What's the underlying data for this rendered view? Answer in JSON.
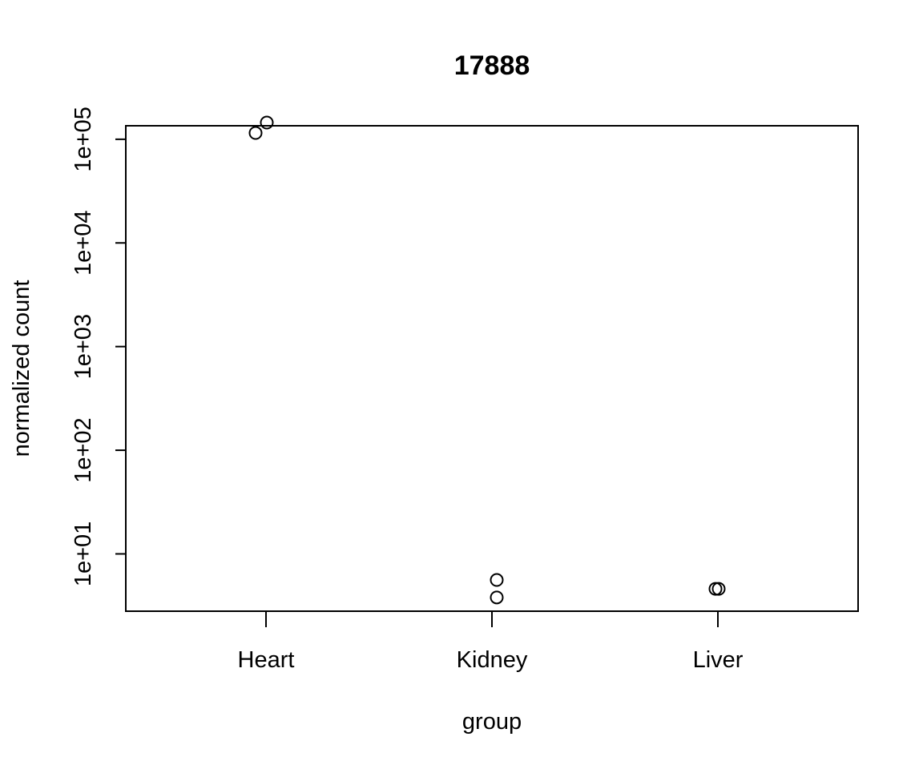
{
  "chart_data": {
    "type": "scatter",
    "title": "17888",
    "xlabel": "group",
    "ylabel": "normalized count",
    "categories": [
      "Heart",
      "Kidney",
      "Liver"
    ],
    "y_scale": "log10",
    "ylim": [
      2.8,
      135000
    ],
    "y_ticks": [
      10,
      100,
      1000,
      10000,
      100000
    ],
    "y_tick_labels": [
      "1e+01",
      "1e+02",
      "1e+03",
      "1e+04",
      "1e+05"
    ],
    "grid": false,
    "legend": "none",
    "points": [
      {
        "group": "Heart",
        "y": 115000
      },
      {
        "group": "Heart",
        "y": 145000
      },
      {
        "group": "Kidney",
        "y": 5.6
      },
      {
        "group": "Kidney",
        "y": 3.8
      },
      {
        "group": "Liver",
        "y": 4.6
      },
      {
        "group": "Liver",
        "y": 4.6
      }
    ]
  }
}
